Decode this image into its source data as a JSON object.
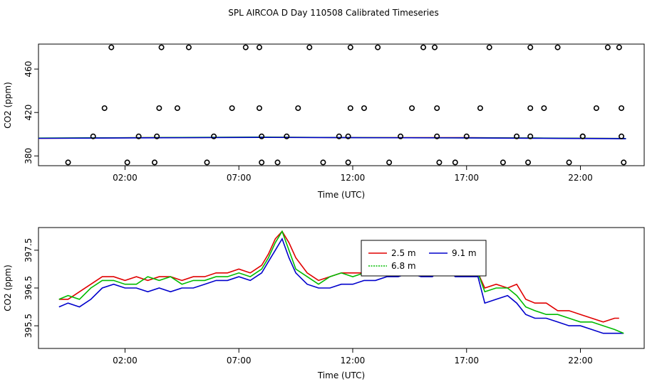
{
  "title": "SPL AIRCOA D  Day 110508  Calibrated Timeseries",
  "chart_data": [
    {
      "type": "scatter",
      "xlabel": "Time (UTC)",
      "ylabel": "CO2 (ppm)",
      "x_unit": "hours UTC",
      "xlim": [
        -1.8,
        24.8
      ],
      "ylim": [
        371,
        483
      ],
      "x_ticks": [
        2,
        7,
        12,
        17,
        22
      ],
      "x_tick_labels": [
        "02:00",
        "07:00",
        "12:00",
        "17:00",
        "22:00"
      ],
      "y_ticks": [
        380,
        420,
        460
      ],
      "y_tick_labels": [
        "380",
        "420",
        "460"
      ],
      "colors": {
        "points": "#000000",
        "line_red": "#e00000",
        "line_green": "#00bb00",
        "line_blue": "#0000cc"
      },
      "points": [
        [
          -0.5,
          374
        ],
        [
          0.6,
          398
        ],
        [
          1.1,
          424
        ],
        [
          1.4,
          480
        ],
        [
          2.1,
          374
        ],
        [
          2.6,
          398
        ],
        [
          3.3,
          374
        ],
        [
          3.4,
          398
        ],
        [
          3.5,
          424
        ],
        [
          3.6,
          480
        ],
        [
          4.3,
          424
        ],
        [
          4.8,
          480
        ],
        [
          5.6,
          374
        ],
        [
          5.9,
          398
        ],
        [
          6.7,
          424
        ],
        [
          7.3,
          480
        ],
        [
          7.9,
          480
        ],
        [
          7.9,
          424
        ],
        [
          8.0,
          398
        ],
        [
          8.0,
          374
        ],
        [
          8.7,
          374
        ],
        [
          9.1,
          398
        ],
        [
          9.6,
          424
        ],
        [
          10.1,
          480
        ],
        [
          10.7,
          374
        ],
        [
          11.4,
          398
        ],
        [
          11.8,
          398
        ],
        [
          11.8,
          374
        ],
        [
          11.9,
          424
        ],
        [
          11.9,
          480
        ],
        [
          12.5,
          424
        ],
        [
          13.1,
          480
        ],
        [
          13.6,
          374
        ],
        [
          14.1,
          398
        ],
        [
          14.6,
          424
        ],
        [
          15.1,
          480
        ],
        [
          15.6,
          480
        ],
        [
          15.7,
          424
        ],
        [
          15.7,
          398
        ],
        [
          15.8,
          374
        ],
        [
          16.5,
          374
        ],
        [
          17.0,
          398
        ],
        [
          17.6,
          424
        ],
        [
          18.0,
          480
        ],
        [
          18.6,
          374
        ],
        [
          19.2,
          398
        ],
        [
          19.7,
          374
        ],
        [
          19.8,
          398
        ],
        [
          19.8,
          424
        ],
        [
          19.8,
          480
        ],
        [
          20.4,
          424
        ],
        [
          21.0,
          480
        ],
        [
          21.5,
          374
        ],
        [
          22.1,
          398
        ],
        [
          22.1,
          398
        ],
        [
          22.7,
          424
        ],
        [
          23.2,
          480
        ],
        [
          23.7,
          480
        ],
        [
          23.8,
          424
        ],
        [
          23.8,
          398
        ],
        [
          23.9,
          374
        ]
      ],
      "series": [
        {
          "color": "#e00000",
          "values": [
            [
              -1.8,
              396.3
            ],
            [
              3,
              396.8
            ],
            [
              8,
              397.2
            ],
            [
              12,
              396.9
            ],
            [
              17,
              396.8
            ],
            [
              20,
              396.4
            ],
            [
              24,
              396.0
            ]
          ]
        },
        {
          "color": "#00bb00",
          "values": [
            [
              -1.8,
              396.4
            ],
            [
              3,
              396.9
            ],
            [
              8,
              397.3
            ],
            [
              12,
              396.9
            ],
            [
              17,
              396.7
            ],
            [
              20,
              396.5
            ],
            [
              24,
              396.0
            ]
          ]
        },
        {
          "color": "#0000cc",
          "values": [
            [
              -1.8,
              396.2
            ],
            [
              3,
              396.7
            ],
            [
              8,
              397.1
            ],
            [
              12,
              396.8
            ],
            [
              17,
              396.6
            ],
            [
              20,
              396.3
            ],
            [
              24,
              395.8
            ]
          ]
        }
      ]
    },
    {
      "type": "line",
      "xlabel": "Time (UTC)",
      "ylabel": "CO2 (ppm)",
      "x_unit": "hours UTC",
      "xlim": [
        -1.8,
        24.8
      ],
      "ylim": [
        394.9,
        398.1
      ],
      "x_ticks": [
        2,
        7,
        12,
        17,
        22
      ],
      "x_tick_labels": [
        "02:00",
        "07:00",
        "12:00",
        "17:00",
        "22:00"
      ],
      "y_ticks": [
        395.5,
        396.5,
        397.5
      ],
      "y_tick_labels": [
        "395.5",
        "396.5",
        "397.5"
      ],
      "legend": {
        "position": "top-center",
        "labels": [
          "2.5 m",
          "9.1 m",
          "6.8 m"
        ]
      },
      "series": [
        {
          "name": "2.5 m",
          "color": "#e00000",
          "values": [
            [
              -0.9,
              396.2
            ],
            [
              -0.5,
              396.2
            ],
            [
              0,
              396.4
            ],
            [
              0.5,
              396.6
            ],
            [
              1,
              396.8
            ],
            [
              1.5,
              396.8
            ],
            [
              2,
              396.7
            ],
            [
              2.5,
              396.8
            ],
            [
              3,
              396.7
            ],
            [
              3.5,
              396.8
            ],
            [
              4,
              396.8
            ],
            [
              4.5,
              396.7
            ],
            [
              5,
              396.8
            ],
            [
              5.5,
              396.8
            ],
            [
              6,
              396.9
            ],
            [
              6.5,
              396.9
            ],
            [
              7,
              397.0
            ],
            [
              7.5,
              396.9
            ],
            [
              8,
              397.1
            ],
            [
              8.3,
              397.4
            ],
            [
              8.6,
              397.8
            ],
            [
              8.9,
              398.0
            ],
            [
              9.2,
              397.7
            ],
            [
              9.5,
              397.3
            ],
            [
              10,
              396.9
            ],
            [
              10.5,
              396.7
            ],
            [
              11,
              396.8
            ],
            [
              11.5,
              396.9
            ],
            [
              12,
              396.9
            ],
            [
              12.5,
              396.9
            ],
            [
              13,
              396.9
            ],
            [
              13.5,
              397.0
            ],
            [
              14,
              397.1
            ],
            [
              14.5,
              397.2
            ],
            [
              15,
              397.2
            ],
            [
              15.5,
              397.1
            ],
            [
              16,
              397.3
            ],
            [
              16.5,
              397.2
            ],
            [
              17,
              397.0
            ],
            [
              17.5,
              396.9
            ],
            [
              17.8,
              396.5
            ],
            [
              18.3,
              396.6
            ],
            [
              18.8,
              396.5
            ],
            [
              19.2,
              396.6
            ],
            [
              19.6,
              396.2
            ],
            [
              20.0,
              396.1
            ],
            [
              20.5,
              396.1
            ],
            [
              21.0,
              395.9
            ],
            [
              21.5,
              395.9
            ],
            [
              22.0,
              395.8
            ],
            [
              22.5,
              395.7
            ],
            [
              23.0,
              395.6
            ],
            [
              23.5,
              395.7
            ],
            [
              23.7,
              395.7
            ]
          ]
        },
        {
          "name": "9.1 m",
          "color": "#0000cc",
          "values": [
            [
              -0.9,
              396.0
            ],
            [
              -0.5,
              396.1
            ],
            [
              0,
              396.0
            ],
            [
              0.5,
              396.2
            ],
            [
              1,
              396.5
            ],
            [
              1.5,
              396.6
            ],
            [
              2,
              396.5
            ],
            [
              2.5,
              396.5
            ],
            [
              3,
              396.4
            ],
            [
              3.5,
              396.5
            ],
            [
              4,
              396.4
            ],
            [
              4.5,
              396.5
            ],
            [
              5,
              396.5
            ],
            [
              5.5,
              396.6
            ],
            [
              6,
              396.7
            ],
            [
              6.5,
              396.7
            ],
            [
              7,
              396.8
            ],
            [
              7.5,
              396.7
            ],
            [
              8,
              396.9
            ],
            [
              8.3,
              397.2
            ],
            [
              8.6,
              397.5
            ],
            [
              8.9,
              397.8
            ],
            [
              9.2,
              397.3
            ],
            [
              9.5,
              396.9
            ],
            [
              10,
              396.6
            ],
            [
              10.5,
              396.5
            ],
            [
              11,
              396.5
            ],
            [
              11.5,
              396.6
            ],
            [
              12,
              396.6
            ],
            [
              12.5,
              396.7
            ],
            [
              13,
              396.7
            ],
            [
              13.5,
              396.8
            ],
            [
              14,
              396.8
            ],
            [
              14.5,
              396.9
            ],
            [
              15,
              396.8
            ],
            [
              15.5,
              396.8
            ],
            [
              16,
              397.1
            ],
            [
              16.5,
              396.8
            ],
            [
              17,
              396.8
            ],
            [
              17.5,
              396.8
            ],
            [
              17.8,
              396.1
            ],
            [
              18.3,
              396.2
            ],
            [
              18.8,
              396.3
            ],
            [
              19.2,
              396.1
            ],
            [
              19.6,
              395.8
            ],
            [
              20.0,
              395.7
            ],
            [
              20.5,
              395.7
            ],
            [
              21.0,
              395.6
            ],
            [
              21.5,
              395.5
            ],
            [
              22.0,
              395.5
            ],
            [
              22.5,
              395.4
            ],
            [
              23.0,
              395.3
            ],
            [
              23.5,
              395.3
            ],
            [
              23.9,
              395.3
            ]
          ]
        },
        {
          "name": "6.8 m",
          "color": "#00bb00",
          "values": [
            [
              -0.9,
              396.2
            ],
            [
              -0.5,
              396.3
            ],
            [
              0,
              396.2
            ],
            [
              0.5,
              396.5
            ],
            [
              1,
              396.7
            ],
            [
              1.5,
              396.7
            ],
            [
              2,
              396.6
            ],
            [
              2.5,
              396.6
            ],
            [
              3,
              396.8
            ],
            [
              3.5,
              396.7
            ],
            [
              4,
              396.8
            ],
            [
              4.5,
              396.6
            ],
            [
              5,
              396.7
            ],
            [
              5.5,
              396.7
            ],
            [
              6,
              396.8
            ],
            [
              6.5,
              396.8
            ],
            [
              7,
              396.9
            ],
            [
              7.5,
              396.8
            ],
            [
              8,
              397.0
            ],
            [
              8.3,
              397.3
            ],
            [
              8.6,
              397.7
            ],
            [
              8.9,
              398.0
            ],
            [
              9.2,
              397.5
            ],
            [
              9.5,
              397.0
            ],
            [
              10,
              396.8
            ],
            [
              10.5,
              396.6
            ],
            [
              11,
              396.8
            ],
            [
              11.5,
              396.9
            ],
            [
              12,
              396.8
            ],
            [
              12.5,
              396.9
            ],
            [
              13,
              396.9
            ],
            [
              13.5,
              396.9
            ],
            [
              14,
              397.0
            ],
            [
              14.5,
              397.2
            ],
            [
              15,
              397.0
            ],
            [
              15.5,
              397.1
            ],
            [
              16,
              397.1
            ],
            [
              16.5,
              396.9
            ],
            [
              17,
              396.9
            ],
            [
              17.5,
              396.9
            ],
            [
              17.8,
              396.4
            ],
            [
              18.3,
              396.5
            ],
            [
              18.8,
              396.5
            ],
            [
              19.2,
              396.3
            ],
            [
              19.6,
              396.0
            ],
            [
              20.0,
              395.9
            ],
            [
              20.5,
              395.8
            ],
            [
              21.0,
              395.8
            ],
            [
              21.5,
              395.7
            ],
            [
              22.0,
              395.6
            ],
            [
              22.5,
              395.6
            ],
            [
              23.0,
              395.5
            ],
            [
              23.5,
              395.4
            ],
            [
              23.9,
              395.3
            ]
          ]
        }
      ]
    }
  ]
}
